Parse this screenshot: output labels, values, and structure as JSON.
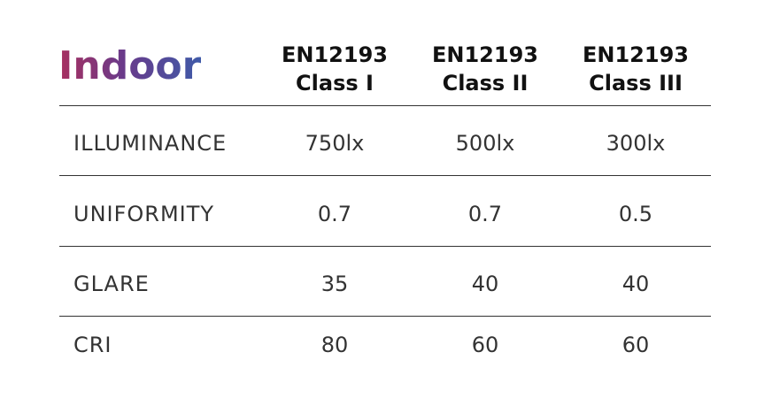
{
  "title": "Indoor",
  "columns": [
    [
      "EN12193",
      "Class I"
    ],
    [
      "EN12193",
      "Class II"
    ],
    [
      "EN12193",
      "Class III"
    ]
  ],
  "rows": [
    [
      "ILLUMINANCE",
      "750lx",
      "500lx",
      "300lx"
    ],
    [
      "UNIFORMITY",
      "0.7",
      "0.7",
      "0.5"
    ],
    [
      "GLARE",
      "35",
      "40",
      "40"
    ],
    [
      "CRI",
      "80",
      "60",
      "60"
    ]
  ]
}
